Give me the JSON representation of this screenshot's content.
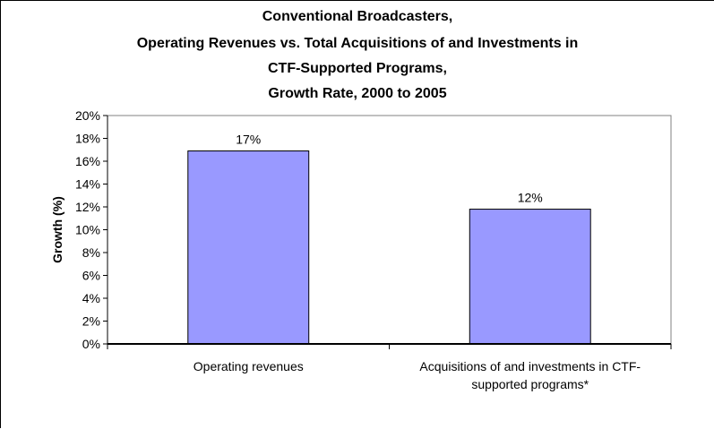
{
  "chart_data": {
    "type": "bar",
    "title_lines": [
      "Conventional Broadcasters,",
      "Operating Revenues vs. Total Acquisitions of and Investments in",
      "CTF-Supported Programs,",
      "Growth Rate, 2000 to 2005"
    ],
    "ylabel": "Growth (%)",
    "xlabel": "",
    "ylim": [
      0,
      20
    ],
    "ytick_values": [
      0,
      2,
      4,
      6,
      8,
      10,
      12,
      14,
      16,
      18,
      20
    ],
    "ytick_labels": [
      "0%",
      "2%",
      "4%",
      "6%",
      "8%",
      "10%",
      "12%",
      "14%",
      "16%",
      "18%",
      "20%"
    ],
    "categories": [
      [
        "Operating revenues"
      ],
      [
        "Acquisitions of and investments in CTF-",
        "supported programs*"
      ]
    ],
    "values": [
      16.9,
      11.8
    ],
    "data_labels": [
      "17%",
      "12%"
    ],
    "bar_color": "#9999ff",
    "bar_edge_color": "#000000",
    "grid": false,
    "legend": "none"
  }
}
